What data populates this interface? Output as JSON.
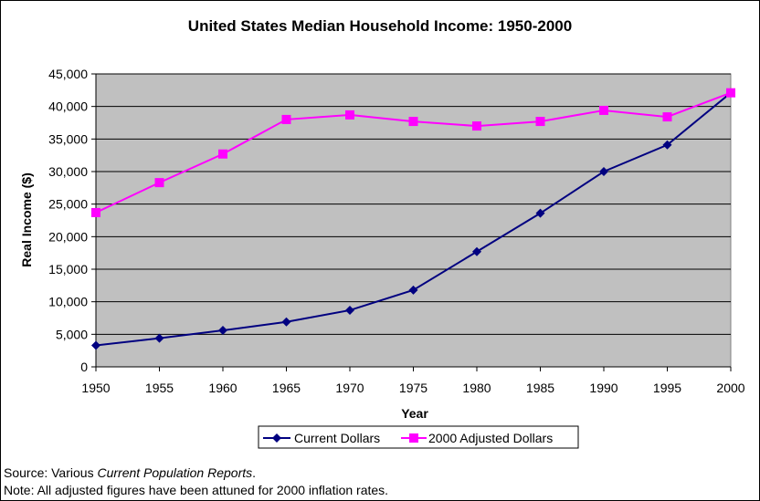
{
  "chart_data": {
    "type": "line",
    "title": "United States Median Household Income: 1950-2000",
    "xlabel": "Year",
    "ylabel": "Real Income ($)",
    "x": [
      1950,
      1955,
      1960,
      1965,
      1970,
      1975,
      1980,
      1985,
      1990,
      1995,
      2000
    ],
    "xlim": [
      1950,
      2000
    ],
    "ylim": [
      0,
      45000
    ],
    "yticks": [
      0,
      5000,
      10000,
      15000,
      20000,
      25000,
      30000,
      35000,
      40000,
      45000
    ],
    "ytick_labels": [
      "0",
      "5,000",
      "10,000",
      "15,000",
      "20,000",
      "25,000",
      "30,000",
      "35,000",
      "40,000",
      "45,000"
    ],
    "xtick_labels": [
      "1950",
      "1955",
      "1960",
      "1965",
      "1970",
      "1975",
      "1980",
      "1985",
      "1990",
      "1995",
      "2000"
    ],
    "grid": true,
    "legend_position": "bottom",
    "series": [
      {
        "name": "Current Dollars",
        "color": "#000080",
        "marker": "diamond",
        "values": [
          3300,
          4400,
          5600,
          6900,
          8700,
          11800,
          17700,
          23600,
          30000,
          34100,
          42100
        ]
      },
      {
        "name": "2000 Adjusted Dollars",
        "color": "#FF00FF",
        "marker": "square",
        "values": [
          23700,
          28300,
          32700,
          38000,
          38700,
          37700,
          37000,
          37700,
          39400,
          38400,
          42100
        ]
      }
    ],
    "plot_background": "#C0C0C0"
  },
  "footer": {
    "source_prefix": "Source: Various ",
    "source_italic": "Current Population Reports",
    "source_suffix": ".",
    "note": "Note: All adjusted figures have been attuned for 2000 inflation rates."
  }
}
